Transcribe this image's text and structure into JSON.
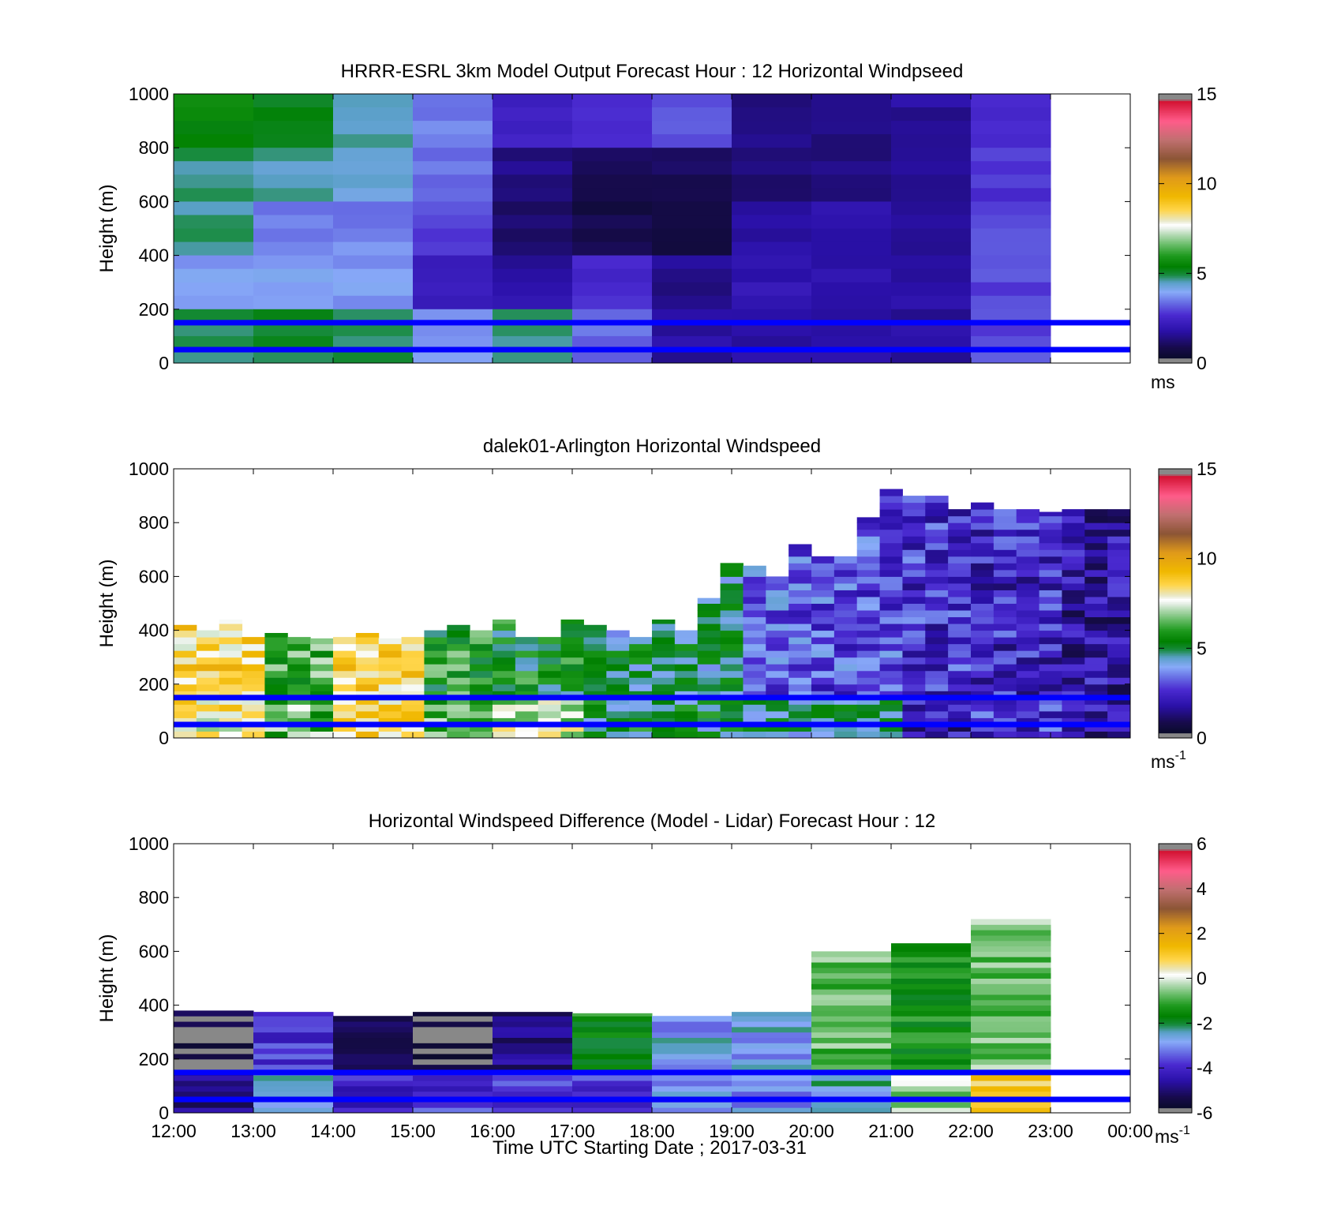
{
  "figure": {
    "xlabel": "Time UTC  Starting Date ; 2017-03-31",
    "x_tick_labels": [
      "12:00",
      "13:00",
      "14:00",
      "15:00",
      "16:00",
      "17:00",
      "18:00",
      "19:00",
      "20:00",
      "21:00",
      "22:00",
      "23:00",
      "00:00"
    ],
    "y_tick_labels": [
      "0",
      "200",
      "400",
      "600",
      "800",
      "1000"
    ]
  },
  "chart_data": [
    {
      "type": "heatmap",
      "title": "HRRR-ESRL 3km Model Output   Forecast Hour : 12 Horizontal Windpseed",
      "xlabel": "",
      "ylabel": "Height (m)",
      "xlim": [
        "12:00",
        "00:00"
      ],
      "ylim": [
        0,
        1000
      ],
      "colorbar": {
        "range": [
          0,
          15
        ],
        "ticks": [
          "0",
          "5",
          "10",
          "15"
        ],
        "units": "ms"
      },
      "reference_lines_m": [
        50,
        150
      ],
      "grid": false,
      "hour_columns": [
        "12:00",
        "13:00",
        "14:00",
        "15:00",
        "16:00",
        "17:00",
        "18:00",
        "19:00",
        "20:00",
        "21:00",
        "22:00"
      ],
      "rows": [
        {
          "height_range_m": [
            800,
            1000
          ],
          "values": [
            5.5,
            5.3,
            4.5,
            3.5,
            2.3,
            2.6,
            3.2,
            1.4,
            1.5,
            1.7,
            2.5
          ]
        },
        {
          "height_range_m": [
            600,
            800
          ],
          "values": [
            4.8,
            4.5,
            4.2,
            3.4,
            1.4,
            1.0,
            1.1,
            1.2,
            1.5,
            1.7,
            2.8
          ]
        },
        {
          "height_range_m": [
            400,
            600
          ],
          "values": [
            4.7,
            3.5,
            3.6,
            3.0,
            1.3,
            0.8,
            0.8,
            1.8,
            1.8,
            1.8,
            3.0
          ]
        },
        {
          "height_range_m": [
            200,
            400
          ],
          "values": [
            3.8,
            4.0,
            3.8,
            2.2,
            1.8,
            2.7,
            1.5,
            2.0,
            1.8,
            1.8,
            3.0
          ]
        },
        {
          "height_range_m": [
            0,
            200
          ],
          "values": [
            4.9,
            5.0,
            4.8,
            3.9,
            4.6,
            3.4,
            1.7,
            1.7,
            1.7,
            1.7,
            3.0
          ]
        }
      ]
    },
    {
      "type": "heatmap",
      "title": "dalek01-Arlington  Horizontal Windspeed",
      "xlabel": "",
      "ylabel": "Height (m)",
      "xlim": [
        "12:00",
        "00:00"
      ],
      "ylim": [
        0,
        1000
      ],
      "colorbar": {
        "range": [
          0,
          15
        ],
        "ticks": [
          "0",
          "5",
          "10",
          "15"
        ],
        "units": "ms",
        "units_superscript": "-1"
      },
      "reference_lines_m": [
        50,
        150
      ],
      "grid": false,
      "data_top_m": [
        420,
        410,
        440,
        380,
        390,
        380,
        370,
        380,
        390,
        370,
        380,
        400,
        420,
        410,
        440,
        380,
        380,
        440,
        420,
        400,
        380,
        440,
        400,
        520,
        650,
        640,
        610,
        720,
        680,
        680,
        820,
        930,
        900,
        900,
        860,
        880,
        860,
        860,
        840,
        860,
        860,
        850
      ],
      "segments": [
        {
          "time_range": [
            "12:00",
            "13:00"
          ],
          "value_above_150m": 8.5,
          "value_below_150m": 8.0
        },
        {
          "time_range": [
            "13:00",
            "14:00"
          ],
          "value_above_150m": 6.3,
          "value_below_150m": 6.5
        },
        {
          "time_range": [
            "14:00",
            "15:00"
          ],
          "value_above_150m": 8.6,
          "value_below_150m": 8.5
        },
        {
          "time_range": [
            "15:00",
            "16:00"
          ],
          "value_above_150m": 5.8,
          "value_below_150m": 6.2
        },
        {
          "time_range": [
            "16:00",
            "17:00"
          ],
          "value_above_150m": 5.5,
          "value_below_150m": 7.2
        },
        {
          "time_range": [
            "17:00",
            "18:00"
          ],
          "value_above_150m": 4.8,
          "value_below_150m": 5.2
        },
        {
          "time_range": [
            "18:00",
            "19:00"
          ],
          "value_above_150m": 4.9,
          "value_below_150m": 5.0
        },
        {
          "time_range": [
            "19:00",
            "20:00"
          ],
          "value_above_150m": 3.2,
          "value_below_150m": 4.8
        },
        {
          "time_range": [
            "20:00",
            "21:00"
          ],
          "value_above_150m": 3.0,
          "value_below_150m": 4.6
        },
        {
          "time_range": [
            "21:00",
            "22:00"
          ],
          "value_above_150m": 2.6,
          "value_below_150m": 2.0
        },
        {
          "time_range": [
            "22:00",
            "23:00"
          ],
          "value_above_150m": 2.4,
          "value_below_150m": 2.6
        },
        {
          "time_range": [
            "23:00",
            "00:00"
          ],
          "value_above_150m": 1.9,
          "value_below_150m": 1.8
        }
      ]
    },
    {
      "type": "heatmap",
      "title": "Horizontal Windspeed Difference (Model - Lidar) Forecast Hour : 12",
      "xlabel": "Time UTC  Starting Date ; 2017-03-31",
      "ylabel": "Height (m)",
      "xlim": [
        "12:00",
        "00:00"
      ],
      "ylim": [
        0,
        1000
      ],
      "colorbar": {
        "range": [
          -6,
          6
        ],
        "ticks": [
          "-6",
          "-4",
          "-2",
          "0",
          "2",
          "4",
          "6"
        ],
        "units": "ms",
        "units_superscript": "-1"
      },
      "reference_lines_m": [
        50,
        150
      ],
      "grid": false,
      "columns": [
        {
          "time_range": [
            "12:00",
            "13:00"
          ],
          "top_m": 380,
          "value_upper": -5.5,
          "value_lower": -5.0
        },
        {
          "time_range": [
            "13:00",
            "14:00"
          ],
          "top_m": 375,
          "value_upper": -3.8,
          "value_lower": -2.6
        },
        {
          "time_range": [
            "14:00",
            "15:00"
          ],
          "top_m": 360,
          "value_upper": -5.0,
          "value_lower": -4.0
        },
        {
          "time_range": [
            "15:00",
            "16:00"
          ],
          "top_m": 375,
          "value_upper": -5.8,
          "value_lower": -3.8
        },
        {
          "time_range": [
            "16:00",
            "17:00"
          ],
          "top_m": 375,
          "value_upper": -4.8,
          "value_lower": -3.8
        },
        {
          "time_range": [
            "17:00",
            "18:00"
          ],
          "top_m": 370,
          "value_upper": -1.5,
          "value_lower": -3.8
        },
        {
          "time_range": [
            "18:00",
            "19:00"
          ],
          "top_m": 360,
          "value_upper": -2.8,
          "value_lower": -3.0
        },
        {
          "time_range": [
            "19:00",
            "20:00"
          ],
          "top_m": 375,
          "value_upper": -2.8,
          "value_lower": -2.9
        },
        {
          "time_range": [
            "20:00",
            "21:00"
          ],
          "top_m": 600,
          "value_upper": -0.8,
          "value_lower": -2.5
        },
        {
          "time_range": [
            "21:00",
            "22:00"
          ],
          "top_m": 630,
          "value_upper": -1.4,
          "value_lower": -0.4
        },
        {
          "time_range": [
            "22:00",
            "23:00"
          ],
          "top_m": 720,
          "value_upper": -0.7,
          "value_lower": 0.9
        }
      ]
    }
  ]
}
